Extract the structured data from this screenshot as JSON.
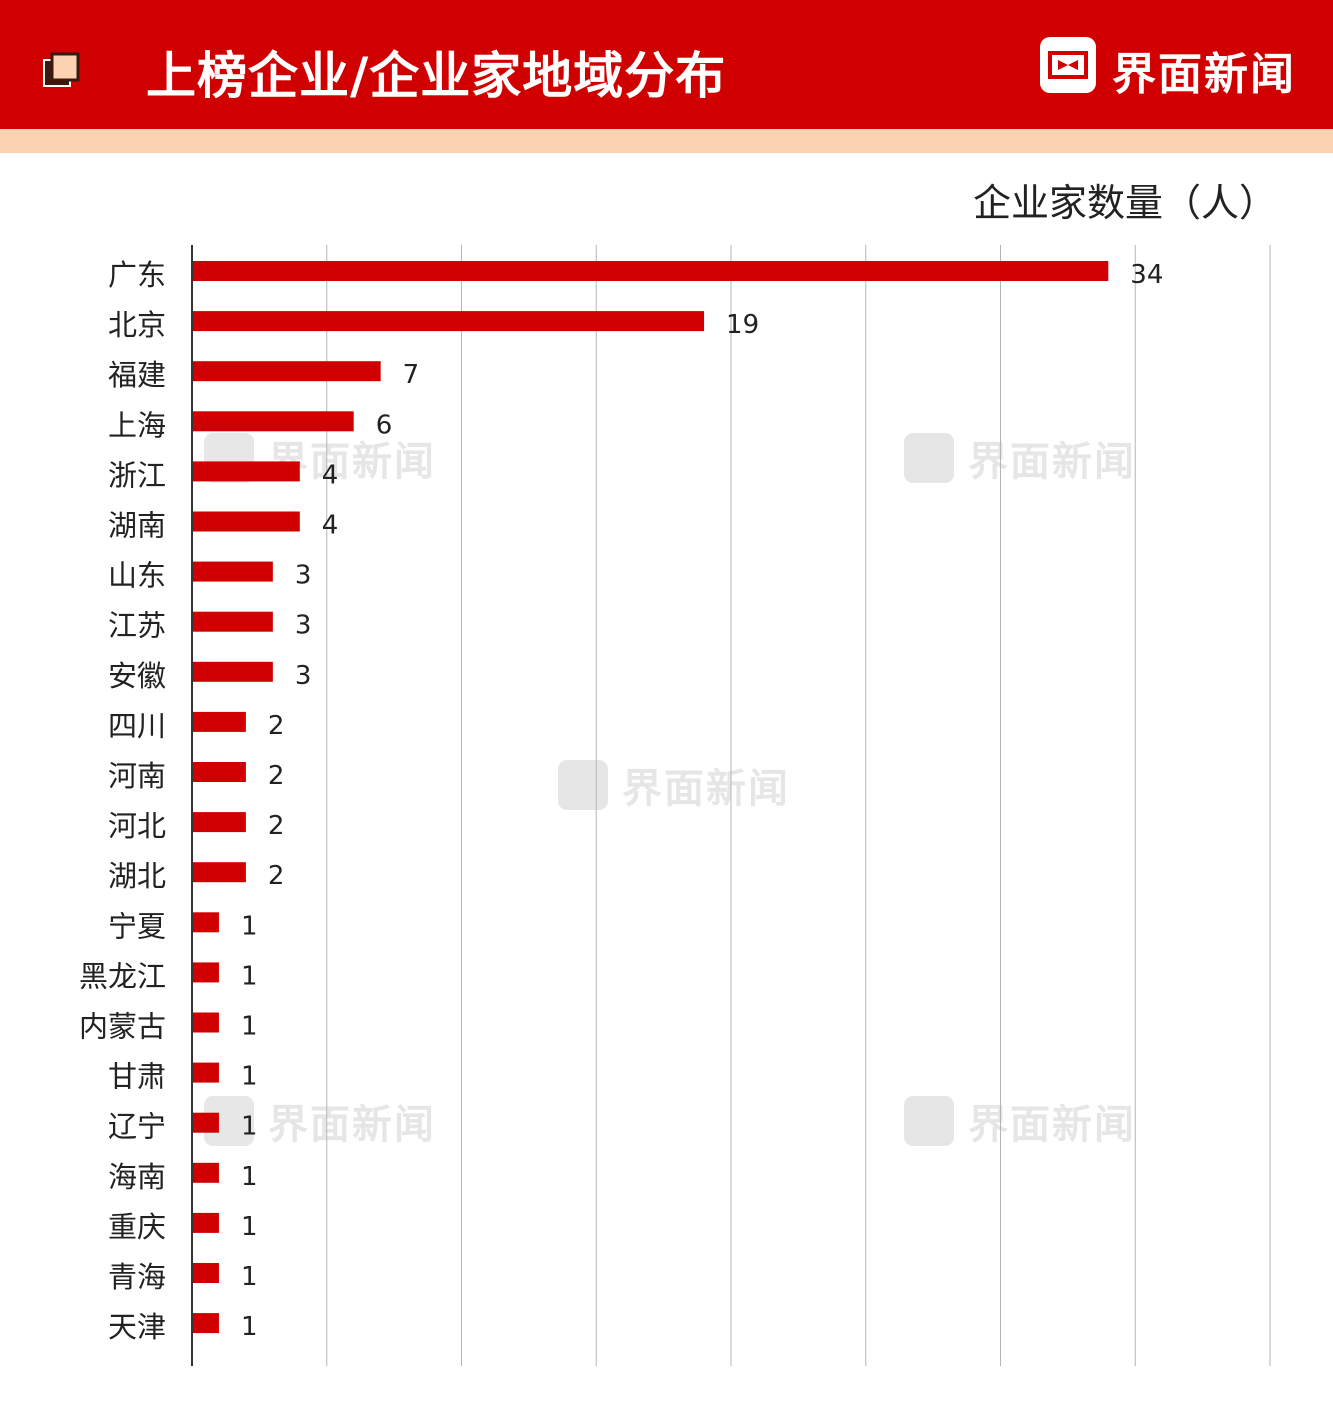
{
  "header": {
    "title": "上榜企业/企业家地域分布",
    "brand": "界面新闻",
    "bg_color": "#d10000",
    "stripe_color": "#fcd2b2"
  },
  "watermark": "界面新闻",
  "chart_data": {
    "type": "bar",
    "orientation": "horizontal",
    "ylabel": "企业家数量（人）",
    "categories": [
      "广东",
      "北京",
      "福建",
      "上海",
      "浙江",
      "湖南",
      "山东",
      "江苏",
      "安徽",
      "四川",
      "河南",
      "河北",
      "湖北",
      "宁夏",
      "黑龙江",
      "内蒙古",
      "甘肃",
      "辽宁",
      "海南",
      "重庆",
      "青海",
      "天津"
    ],
    "values": [
      34,
      19,
      7,
      6,
      4,
      4,
      3,
      3,
      3,
      2,
      2,
      2,
      2,
      1,
      1,
      1,
      1,
      1,
      1,
      1,
      1,
      1
    ],
    "bar_color": "#d10000",
    "xlim": [
      0,
      40
    ],
    "grid": true,
    "data_labels": true
  }
}
